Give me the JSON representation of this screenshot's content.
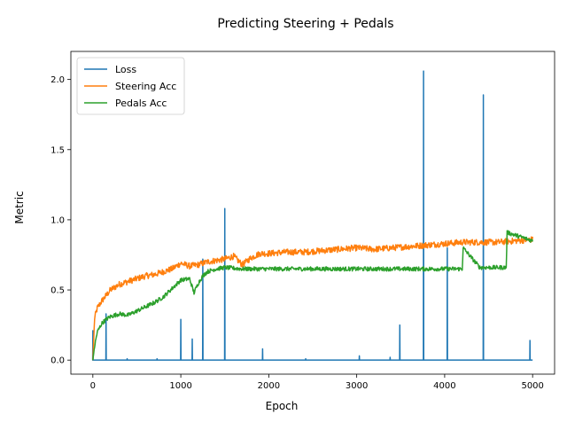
{
  "chart_data": {
    "type": "line",
    "title": "Predicting Steering + Pedals",
    "xlabel": "Epoch",
    "ylabel": "Metric",
    "xlim": [
      -250,
      5250
    ],
    "ylim": [
      -0.1,
      2.2
    ],
    "xticks": [
      0,
      1000,
      2000,
      3000,
      4000,
      5000
    ],
    "xtick_labels": [
      "0",
      "1000",
      "2000",
      "3000",
      "4000",
      "5000"
    ],
    "yticks": [
      0.0,
      0.5,
      1.0,
      1.5,
      2.0
    ],
    "ytick_labels": [
      "0.0",
      "0.5",
      "1.0",
      "1.5",
      "2.0"
    ],
    "grid": false,
    "legend_position": "top-left",
    "series": [
      {
        "name": "Loss",
        "color": "#1f77b4",
        "baseline": 0.0,
        "spikes": [
          {
            "x": 0,
            "y": 0.21
          },
          {
            "x": 150,
            "y": 0.33
          },
          {
            "x": 390,
            "y": 0.01
          },
          {
            "x": 730,
            "y": 0.01
          },
          {
            "x": 1000,
            "y": 0.29
          },
          {
            "x": 1130,
            "y": 0.15
          },
          {
            "x": 1250,
            "y": 0.72
          },
          {
            "x": 1500,
            "y": 1.08
          },
          {
            "x": 1930,
            "y": 0.08
          },
          {
            "x": 2420,
            "y": 0.01
          },
          {
            "x": 3030,
            "y": 0.03
          },
          {
            "x": 3380,
            "y": 0.02
          },
          {
            "x": 3490,
            "y": 0.25
          },
          {
            "x": 3760,
            "y": 2.06
          },
          {
            "x": 4030,
            "y": 0.8
          },
          {
            "x": 4440,
            "y": 1.89
          },
          {
            "x": 4970,
            "y": 0.14
          }
        ]
      },
      {
        "name": "Steering Acc",
        "color": "#ff7f0e",
        "x": [
          0,
          20,
          50,
          100,
          150,
          200,
          300,
          400,
          500,
          600,
          700,
          800,
          900,
          1000,
          1100,
          1200,
          1300,
          1400,
          1500,
          1600,
          1700,
          1800,
          1900,
          2000,
          2200,
          2400,
          2600,
          2800,
          3000,
          3200,
          3400,
          3600,
          3800,
          4000,
          4200,
          4400,
          4600,
          4800,
          5000
        ],
        "y": [
          0.0,
          0.3,
          0.37,
          0.42,
          0.46,
          0.5,
          0.54,
          0.56,
          0.58,
          0.6,
          0.61,
          0.63,
          0.65,
          0.69,
          0.67,
          0.68,
          0.7,
          0.71,
          0.72,
          0.74,
          0.68,
          0.73,
          0.76,
          0.76,
          0.77,
          0.77,
          0.78,
          0.79,
          0.8,
          0.79,
          0.8,
          0.81,
          0.82,
          0.83,
          0.84,
          0.84,
          0.84,
          0.85,
          0.86
        ],
        "noise": 0.022
      },
      {
        "name": "Pedals Acc",
        "color": "#2ca02c",
        "x": [
          0,
          20,
          50,
          100,
          150,
          200,
          300,
          400,
          500,
          600,
          700,
          800,
          900,
          1000,
          1100,
          1150,
          1200,
          1250,
          1300,
          1400,
          1500,
          1700,
          2000,
          2500,
          3000,
          3500,
          4000,
          4200,
          4210,
          4400,
          4500,
          4700,
          4710,
          5000
        ],
        "y": [
          0.0,
          0.1,
          0.2,
          0.26,
          0.29,
          0.31,
          0.33,
          0.32,
          0.35,
          0.38,
          0.41,
          0.45,
          0.51,
          0.57,
          0.58,
          0.48,
          0.55,
          0.6,
          0.63,
          0.65,
          0.66,
          0.65,
          0.65,
          0.65,
          0.65,
          0.65,
          0.65,
          0.65,
          0.8,
          0.66,
          0.66,
          0.66,
          0.91,
          0.85
        ],
        "noise": 0.015
      }
    ]
  }
}
